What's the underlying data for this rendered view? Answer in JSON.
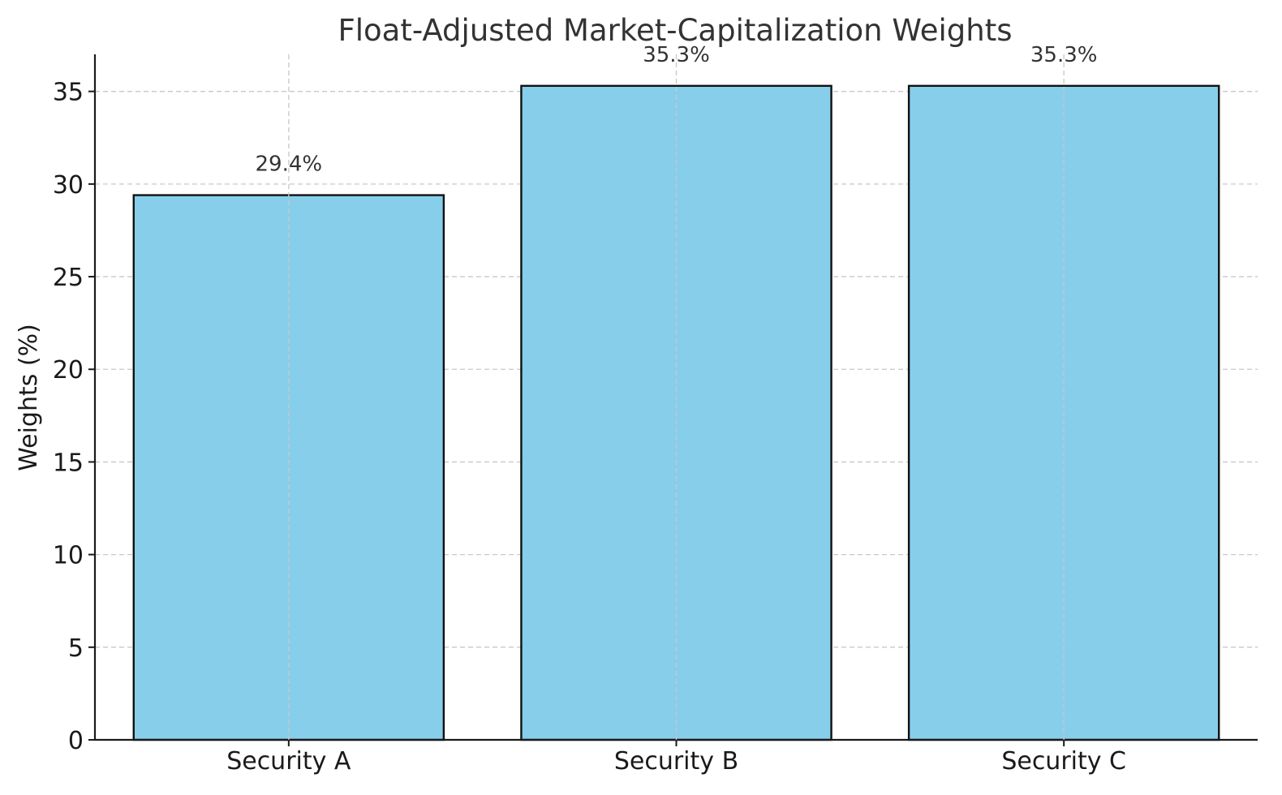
{
  "chart_data": {
    "type": "bar",
    "title": "Float-Adjusted Market-Capitalization Weights",
    "xlabel": "",
    "ylabel": "Weights (%)",
    "categories": [
      "Security A",
      "Security B",
      "Security C"
    ],
    "values": [
      29.4,
      35.3,
      35.3
    ],
    "data_labels": [
      "29.4%",
      "35.3%",
      "35.3%"
    ],
    "ylim": [
      0,
      37
    ],
    "yticks": [
      0,
      5,
      10,
      15,
      20,
      25,
      30,
      35
    ],
    "grid": true,
    "bar_color": "#87CEEB",
    "edge_color": "#111111"
  }
}
